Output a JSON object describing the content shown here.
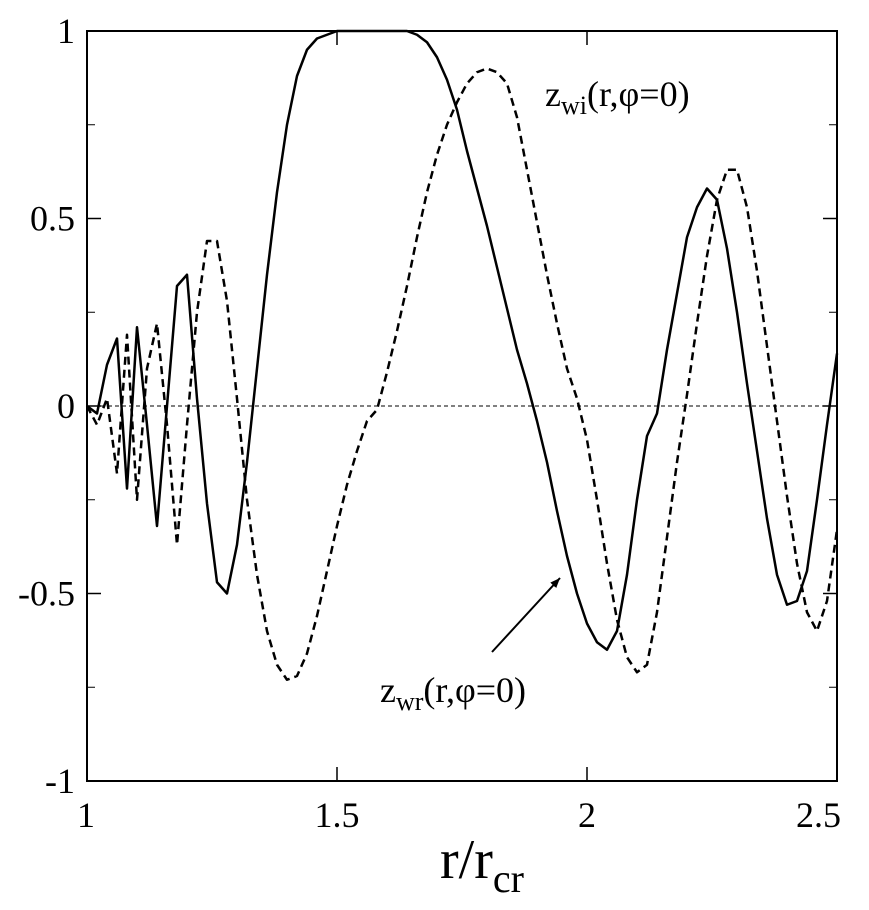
{
  "chart_data": {
    "type": "line",
    "x": [
      1.0,
      1.02,
      1.04,
      1.06,
      1.08,
      1.1,
      1.12,
      1.14,
      1.16,
      1.18,
      1.2,
      1.22,
      1.24,
      1.26,
      1.28,
      1.3,
      1.32,
      1.34,
      1.36,
      1.38,
      1.4,
      1.42,
      1.44,
      1.46,
      1.48,
      1.5,
      1.52,
      1.54,
      1.56,
      1.58,
      1.6,
      1.62,
      1.64,
      1.66,
      1.68,
      1.7,
      1.72,
      1.74,
      1.76,
      1.78,
      1.8,
      1.82,
      1.84,
      1.86,
      1.88,
      1.9,
      1.92,
      1.94,
      1.96,
      1.98,
      2.0,
      2.02,
      2.04,
      2.06,
      2.08,
      2.1,
      2.12,
      2.14,
      2.16,
      2.18,
      2.2,
      2.22,
      2.24,
      2.26,
      2.28,
      2.3,
      2.32,
      2.34,
      2.36,
      2.38,
      2.4,
      2.42,
      2.44,
      2.46,
      2.48,
      2.5
    ],
    "series": [
      {
        "color": "#000000",
        "dash": "solid",
        "values": [
          0,
          -0.02,
          0.11,
          0.18,
          -0.22,
          0.21,
          -0.05,
          -0.32,
          0.0,
          0.32,
          0.35,
          0.02,
          -0.26,
          -0.47,
          -0.5,
          -0.37,
          -0.15,
          0.1,
          0.35,
          0.57,
          0.75,
          0.88,
          0.95,
          0.98,
          0.99,
          1.0,
          1.0,
          1.0,
          1.0,
          1.0,
          1.0,
          1.0,
          1.0,
          0.99,
          0.97,
          0.93,
          0.87,
          0.79,
          0.68,
          0.58,
          0.48,
          0.37,
          0.26,
          0.15,
          0.06,
          -0.04,
          -0.15,
          -0.28,
          -0.4,
          -0.5,
          -0.58,
          -0.63,
          -0.65,
          -0.6,
          -0.45,
          -0.25,
          -0.08,
          -0.02,
          0.15,
          0.3,
          0.45,
          0.53,
          0.58,
          0.55,
          0.42,
          0.25,
          0.06,
          -0.12,
          -0.3,
          -0.45,
          -0.53,
          -0.52,
          -0.44,
          -0.25,
          -0.05,
          0.14
        ]
      },
      {
        "color": "#000000",
        "dash": "dashed",
        "values": [
          0,
          -0.05,
          0.02,
          -0.18,
          0.19,
          -0.25,
          0.1,
          0.22,
          -0.05,
          -0.37,
          -0.05,
          0.25,
          0.44,
          0.44,
          0.28,
          0.02,
          -0.25,
          -0.45,
          -0.6,
          -0.69,
          -0.73,
          -0.72,
          -0.66,
          -0.56,
          -0.44,
          -0.32,
          -0.21,
          -0.12,
          -0.04,
          -0.01,
          0.09,
          0.2,
          0.32,
          0.45,
          0.57,
          0.67,
          0.75,
          0.81,
          0.86,
          0.89,
          0.9,
          0.89,
          0.86,
          0.77,
          0.63,
          0.49,
          0.35,
          0.22,
          0.1,
          0.02,
          -0.09,
          -0.25,
          -0.42,
          -0.57,
          -0.67,
          -0.71,
          -0.69,
          -0.55,
          -0.35,
          -0.15,
          0.03,
          0.22,
          0.4,
          0.55,
          0.63,
          0.63,
          0.53,
          0.36,
          0.16,
          -0.04,
          -0.24,
          -0.42,
          -0.55,
          -0.6,
          -0.52,
          -0.33
        ]
      }
    ],
    "xlim": [
      1,
      2.5
    ],
    "ylim": [
      -1,
      1
    ],
    "xticks": [
      1,
      1.5,
      2,
      2.5
    ],
    "yticks": [
      -1,
      -0.5,
      0,
      0.5,
      1
    ],
    "yminor": [
      -0.75,
      -0.25,
      0.25,
      0.75
    ],
    "zero_line": true,
    "xlabel": {
      "main": "r/r",
      "sub": "cr"
    },
    "annotations": [
      {
        "main": "z",
        "sub": "wi",
        "rest": "(r,φ=0)"
      },
      {
        "main": "z",
        "sub": "wr",
        "rest": "(r,φ=0)"
      }
    ]
  }
}
